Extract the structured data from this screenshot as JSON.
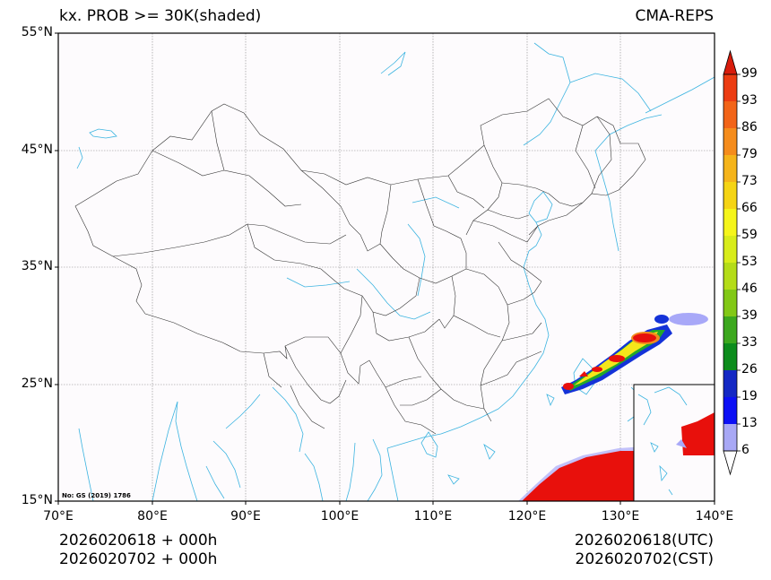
{
  "header": {
    "title": "kx. PROB >= 30K(shaded)",
    "source": "CMA-REPS"
  },
  "map": {
    "lat_labels": [
      "55°N",
      "45°N",
      "35°N",
      "25°N",
      "15°N"
    ],
    "lon_labels": [
      "70°E",
      "80°E",
      "90°E",
      "100°E",
      "110°E",
      "120°E",
      "130°E",
      "140°E"
    ],
    "extent": {
      "lon_min": 70,
      "lon_max": 140,
      "lat_min": 15,
      "lat_max": 55
    },
    "note": "No: GS (2019) 1786",
    "colors": {
      "coast": "#3cb4e0",
      "border": "#333333",
      "red": "#e8100c",
      "orange": "#f28c1e",
      "yellow": "#f5e61a",
      "green": "#22a82a",
      "blue": "#1432d8",
      "light_blue": "#a8a8f8"
    }
  },
  "colorbar": {
    "labels": [
      "99",
      "93",
      "86",
      "79",
      "73",
      "66",
      "59",
      "53",
      "46",
      "39",
      "33",
      "26",
      "19",
      "13",
      "6"
    ],
    "colors": [
      "#d81c0c",
      "#ec3c12",
      "#f26418",
      "#f58c1c",
      "#f5b41a",
      "#f5d414",
      "#f5f51a",
      "#d8ec1a",
      "#b4dc18",
      "#82c816",
      "#3ca81e",
      "#0c8c1c",
      "#1428c4",
      "#0c10f5",
      "#4848f5",
      "#a8a8f5"
    ]
  },
  "footer": {
    "init_utc": "2026020618  +  000h",
    "init_cst": "2026020702  +  000h",
    "valid_utc": "2026020618(UTC)",
    "valid_cst": "2026020702(CST)"
  }
}
